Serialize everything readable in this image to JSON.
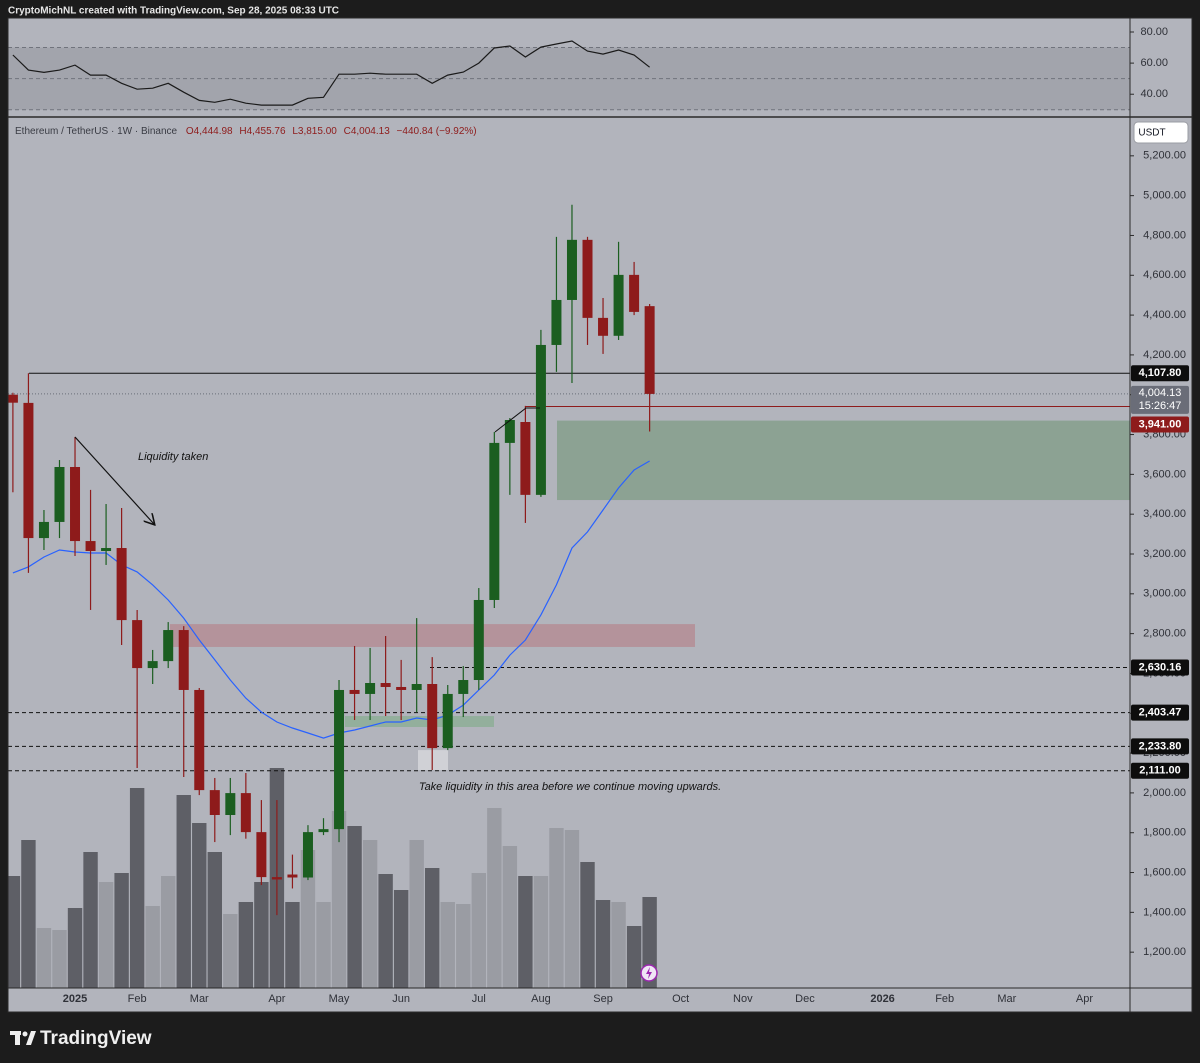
{
  "header": {
    "caption": "CryptoMichNL created with TradingView.com, Sep 28, 2025 08:33 UTC"
  },
  "footer": {
    "brand": "TradingView"
  },
  "chart_data": {
    "type": "candlestick",
    "symbol": "Ethereum / TetherUS · 1W · Binance",
    "ohlc_legend": [
      "O4,444.98",
      "H4,455.76",
      "L3,815.00",
      "C4,004.13",
      "−440.84 (−9.92%)"
    ],
    "currency": "USDT",
    "up_color": "#1b5e20",
    "down_color": "#8e1b1b",
    "volume_up_color": "#9a9ca3",
    "volume_down_color": "#5e5f66",
    "ylim": [
      1020,
      5390
    ],
    "yticks": [
      {
        "value": 1200,
        "label": "1,200.00"
      },
      {
        "value": 1400,
        "label": "1,400.00"
      },
      {
        "value": 1600,
        "label": "1,600.00"
      },
      {
        "value": 1800,
        "label": "1,800.00"
      },
      {
        "value": 2000,
        "label": "2,000.00"
      },
      {
        "value": 2200,
        "label": "2,200.00"
      },
      {
        "value": 2400,
        "label": "2,400.00"
      },
      {
        "value": 2600,
        "label": "2,600.00"
      },
      {
        "value": 2800,
        "label": "2,800.00"
      },
      {
        "value": 3000,
        "label": "3,000.00"
      },
      {
        "value": 3200,
        "label": "3,200.00"
      },
      {
        "value": 3400,
        "label": "3,400.00"
      },
      {
        "value": 3600,
        "label": "3,600.00"
      },
      {
        "value": 3800,
        "label": "3,800.00"
      },
      {
        "value": 4000,
        "label": "4,000.00"
      },
      {
        "value": 4200,
        "label": "4,200.00"
      },
      {
        "value": 4400,
        "label": "4,400.00"
      },
      {
        "value": 4600,
        "label": "4,600.00"
      },
      {
        "value": 4800,
        "label": "4,800.00"
      },
      {
        "value": 5000,
        "label": "5,000.00"
      },
      {
        "value": 5200,
        "label": "5,200.00"
      }
    ],
    "categories": [
      null,
      null,
      null,
      null,
      "2025",
      null,
      null,
      null,
      "Feb",
      null,
      null,
      null,
      "Mar",
      null,
      null,
      null,
      null,
      "Apr",
      null,
      null,
      null,
      "May",
      null,
      null,
      null,
      "Jun",
      null,
      null,
      null,
      null,
      "Jul",
      null,
      null,
      null,
      "Aug",
      null,
      null,
      null,
      "Sep",
      null,
      null,
      null,
      null,
      "Oct",
      null,
      null,
      null,
      "Nov",
      null,
      null,
      null,
      "Dec",
      null,
      null,
      null,
      null,
      "2026",
      null,
      null,
      null,
      "Feb",
      null,
      null,
      null,
      "Mar",
      null,
      null,
      null,
      null,
      "Apr",
      null,
      null
    ],
    "open": [
      4000,
      3959,
      3280,
      3361,
      3637,
      3265,
      3215,
      3230,
      2868,
      2627,
      2662,
      2818,
      2517,
      2014,
      1889,
      1999,
      1803,
      1577,
      1590,
      1575,
      1803,
      1818,
      2517,
      2497,
      2552,
      2532,
      2517,
      2547,
      2225,
      2497,
      2567,
      2969,
      3758,
      3863,
      3497,
      4250,
      4476,
      4778,
      4386,
      4296,
      4602,
      4444.98,
      null,
      null,
      null,
      null,
      null,
      null,
      null,
      null,
      null,
      null,
      null,
      null,
      null,
      null,
      null,
      null,
      null,
      null,
      null,
      null,
      null,
      null,
      null,
      null,
      null,
      null,
      null,
      null,
      null,
      null
    ],
    "high": [
      4010,
      4107.8,
      3421,
      3672,
      3788,
      3522,
      3451,
      3431,
      2919,
      2718,
      2858,
      2838,
      2527,
      2075,
      2075,
      2100,
      1964,
      1964,
      1690,
      1838,
      1873,
      2567,
      2738,
      2728,
      2788,
      2668,
      2878,
      2682,
      2542,
      2637,
      3029,
      3813,
      3883,
      3944,
      4326,
      4793,
      4954,
      4793,
      4486,
      4768,
      4667,
      4455.76,
      null,
      null,
      null,
      null,
      null,
      null,
      null,
      null,
      null,
      null,
      null,
      null,
      null,
      null,
      null,
      null,
      null,
      null,
      null,
      null,
      null,
      null,
      null,
      null,
      null,
      null,
      null,
      null,
      null,
      null
    ],
    "low": [
      3510,
      3105,
      3220,
      3280,
      3190,
      2919,
      3145,
      2743,
      2125,
      2547,
      2627,
      2080,
      1989,
      1753,
      1788,
      1770,
      1537,
      1386,
      1520,
      1562,
      1788,
      1753,
      2366,
      2366,
      2386,
      2366,
      2406,
      2115,
      2215,
      2381,
      2517,
      2929,
      3497,
      3356,
      3487,
      4115,
      4059,
      4250,
      4205,
      4275,
      4400,
      3815,
      null,
      null,
      null,
      null,
      null,
      null,
      null,
      null,
      null,
      null,
      null,
      null,
      null,
      null,
      null,
      null,
      null,
      null,
      null,
      null,
      null,
      null,
      null,
      null,
      null,
      null,
      null,
      null,
      null,
      null
    ],
    "close": [
      3960,
      3280,
      3361,
      3637,
      3265,
      3215,
      3230,
      2868,
      2627,
      2662,
      2818,
      2517,
      2014,
      1889,
      1999,
      1803,
      1577,
      1565,
      1575,
      1803,
      1818,
      2517,
      2497,
      2552,
      2532,
      2517,
      2547,
      2225,
      2497,
      2567,
      2969,
      3758,
      3873,
      3497,
      4250,
      4476,
      4778,
      4386,
      4296,
      4602,
      4416,
      4004.13,
      null,
      null,
      null,
      null,
      null,
      null,
      null,
      null,
      null,
      null,
      null,
      null,
      null,
      null,
      null,
      null,
      null,
      null,
      null,
      null,
      null,
      null,
      null,
      null,
      null,
      null,
      null,
      null,
      null,
      null
    ],
    "volume_lim": [
      0,
      870
    ],
    "volume": [
      112,
      148,
      60,
      58,
      80,
      136,
      106,
      115,
      200,
      82,
      112,
      193,
      165,
      136,
      74,
      86,
      106,
      220,
      86,
      138,
      86,
      177,
      162,
      148,
      114,
      98,
      148,
      120,
      86,
      84,
      115,
      180,
      142,
      112,
      112,
      160,
      158,
      126,
      88,
      86,
      62,
      91,
      null,
      null,
      null,
      null,
      null,
      null,
      null,
      null,
      null,
      null,
      null,
      null,
      null,
      null,
      null,
      null,
      null,
      null,
      null,
      null,
      null,
      null,
      null,
      null,
      null,
      null,
      null,
      null,
      null,
      null
    ],
    "ma": {
      "color": "#2962ff",
      "values": [
        3105,
        3135,
        3185,
        3220,
        3210,
        3205,
        3205,
        3145,
        3110,
        3045,
        2969,
        2878,
        2768,
        2668,
        2567,
        2476,
        2406,
        2356,
        2326,
        2301,
        2275,
        2301,
        2316,
        2336,
        2356,
        2356,
        2376,
        2366,
        2391,
        2441,
        2517,
        2592,
        2692,
        2768,
        2894,
        3045,
        3230,
        3311,
        3421,
        3532,
        3622,
        3667,
        null,
        null,
        null,
        null,
        null,
        null,
        null,
        null,
        null,
        null,
        null,
        null,
        null,
        null,
        null,
        null,
        null,
        null,
        null,
        null,
        null,
        null,
        null,
        null,
        null,
        null,
        null,
        null,
        null,
        null
      ]
    },
    "levels": [
      {
        "value": 4107.8,
        "label": "4,107.80",
        "style": "solid"
      },
      {
        "value": 2630.16,
        "label": "2,630.16",
        "style": "dashed"
      },
      {
        "value": 2403.47,
        "label": "2,403.47",
        "style": "dashed"
      },
      {
        "value": 2233.8,
        "label": "2,233.80",
        "style": "dashed"
      },
      {
        "value": 2111,
        "label": "2,111.00",
        "style": "dashed"
      }
    ],
    "last_price": {
      "value": 4004.13,
      "label": "4,004.13",
      "countdown": "15:26:47",
      "color": "#6a6d78"
    },
    "low_marker": {
      "value": 3941,
      "label": "3,941.00",
      "color": "#8e1b1b"
    },
    "zones": [
      {
        "from": 3471,
        "to": 3870,
        "color": "#87a08e"
      },
      {
        "from": 2733,
        "to": 2848,
        "color": "#b48f97"
      },
      {
        "from": 2331,
        "to": 2386,
        "color": "#8fae98"
      },
      {
        "from": 2115,
        "to": 2215,
        "color": "#d3d4d8"
      }
    ],
    "annotations": [
      {
        "text": "Liquidity taken"
      },
      {
        "text": "Take liquidity in this area before we continue moving upwards."
      }
    ],
    "rsi": {
      "color": "#1a1a1a",
      "ylim": [
        26,
        89
      ],
      "yticks": [
        {
          "value": 40,
          "label": "40.00"
        },
        {
          "value": 60,
          "label": "60.00"
        },
        {
          "value": 80,
          "label": "80.00"
        }
      ],
      "levels": [
        70,
        50,
        30
      ],
      "values": [
        65.2,
        55.5,
        54,
        55.5,
        58.7,
        52.3,
        52.3,
        47,
        43.2,
        43.9,
        47,
        41.3,
        36,
        34.8,
        36.8,
        34.2,
        33,
        33,
        33,
        37.4,
        38,
        52.9,
        52.9,
        53.5,
        52.9,
        52.9,
        52.9,
        47,
        52.3,
        54.2,
        60,
        69.7,
        71,
        63.9,
        70.3,
        72.3,
        74.2,
        67.7,
        65.8,
        68.4,
        65.2,
        57.4,
        null,
        null,
        null,
        null,
        null,
        null,
        null,
        null,
        null,
        null,
        null,
        null,
        null,
        null,
        null,
        null,
        null,
        null,
        null,
        null,
        null,
        null,
        null,
        null,
        null,
        null,
        null,
        null,
        null,
        null
      ]
    }
  }
}
